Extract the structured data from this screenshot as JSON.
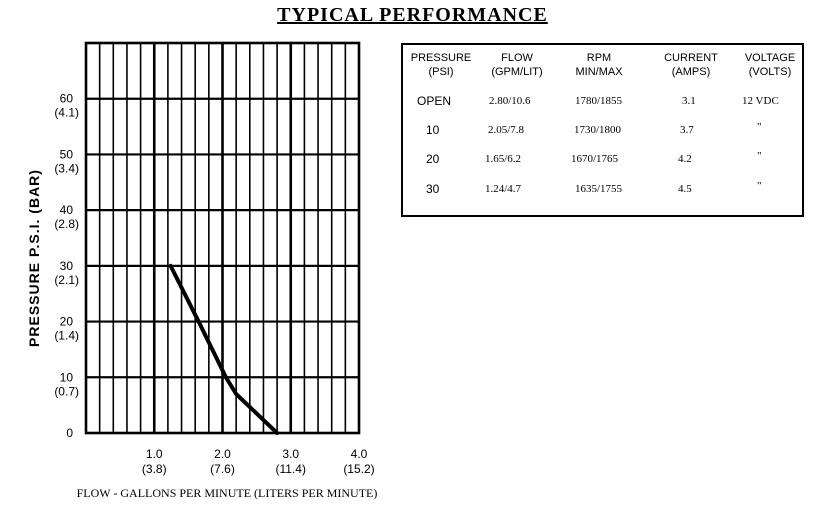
{
  "title": "TYPICAL  PERFORMANCE",
  "chart_data": {
    "type": "line",
    "title": "TYPICAL  PERFORMANCE",
    "ylabel": "PRESSURE  P.S.I.  (BAR)",
    "xlabel": "FLOW - GALLONS PER MINUTE  (LITERS PER MINUTE)",
    "xlim": [
      0,
      4.0
    ],
    "ylim": [
      0,
      70
    ],
    "grid": true,
    "x_ticks": [
      {
        "value": 1.0,
        "label": "1.0",
        "sub": "(3.8)"
      },
      {
        "value": 2.0,
        "label": "2.0",
        "sub": "(7.6)"
      },
      {
        "value": 3.0,
        "label": "3.0",
        "sub": "(11.4)"
      },
      {
        "value": 4.0,
        "label": "4.0",
        "sub": "(15.2)"
      }
    ],
    "y_ticks": [
      {
        "value": 0,
        "label": "0",
        "sub": ""
      },
      {
        "value": 10,
        "label": "10",
        "sub": "(0.7)"
      },
      {
        "value": 20,
        "label": "20",
        "sub": "(1.4)"
      },
      {
        "value": 30,
        "label": "30",
        "sub": "(2.1)"
      },
      {
        "value": 40,
        "label": "40",
        "sub": "(2.8)"
      },
      {
        "value": 50,
        "label": "50",
        "sub": "(3.4)"
      },
      {
        "value": 60,
        "label": "60",
        "sub": "(4.1)"
      }
    ],
    "series": [
      {
        "x": [
          1.24,
          1.65,
          2.05,
          2.2,
          2.8
        ],
        "y": [
          30,
          20,
          10,
          7,
          0
        ]
      }
    ]
  },
  "table": {
    "headers": [
      {
        "line1": "PRESSURE",
        "line2": "(PSI)"
      },
      {
        "line1": "FLOW",
        "line2": "(GPM/LIT)"
      },
      {
        "line1": "RPM",
        "line2": "MIN/MAX"
      },
      {
        "line1": "CURRENT",
        "line2": "(AMPS)"
      },
      {
        "line1": "VOLTAGE",
        "line2": "(VOLTS)"
      }
    ],
    "rows": [
      {
        "pressure": "OPEN",
        "flow": "2.80/10.6",
        "rpm": "1780/1855",
        "current": "3.1",
        "voltage": "12 VDC"
      },
      {
        "pressure": "10",
        "flow": "2.05/7.8",
        "rpm": "1730/1800",
        "current": "3.7",
        "voltage": "\""
      },
      {
        "pressure": "20",
        "flow": "1.65/6.2",
        "rpm": "1670/1765",
        "current": "4.2",
        "voltage": "\""
      },
      {
        "pressure": "30",
        "flow": "1.24/4.7",
        "rpm": "1635/1755",
        "current": "4.5",
        "voltage": "\""
      }
    ]
  }
}
